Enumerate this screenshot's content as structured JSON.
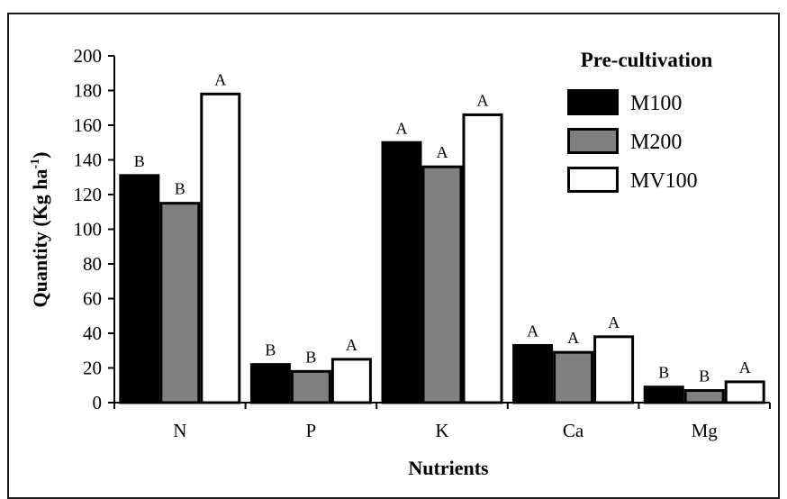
{
  "chart_data": {
    "type": "bar",
    "categories": [
      "N",
      "P",
      "K",
      "Ca",
      "Mg"
    ],
    "series": [
      {
        "name": "M100",
        "color": "#000000",
        "values": [
          131,
          22,
          150,
          33,
          9
        ],
        "sig": [
          "B",
          "B",
          "A",
          "A",
          "B"
        ]
      },
      {
        "name": "M200",
        "color": "#808080",
        "values": [
          115,
          18,
          136,
          29,
          7
        ],
        "sig": [
          "B",
          "B",
          "A",
          "A",
          "B"
        ]
      },
      {
        "name": "MV100",
        "color": "#ffffff",
        "values": [
          178,
          25,
          166,
          38,
          12
        ],
        "sig": [
          "A",
          "A",
          "A",
          "A",
          "A"
        ]
      }
    ],
    "xlabel": "Nutrients",
    "ylabel_main": "Quantity  (Kg ha",
    "ylabel_sup": "-1",
    "ylabel_end": ")",
    "ylim": [
      0,
      200
    ],
    "yticks": [
      "0",
      "20",
      "40",
      "60",
      "80",
      "100",
      "120",
      "140",
      "160",
      "180",
      "200"
    ],
    "legend_title": "Pre-cultivation",
    "legend_position": "top-right",
    "grid": false
  }
}
